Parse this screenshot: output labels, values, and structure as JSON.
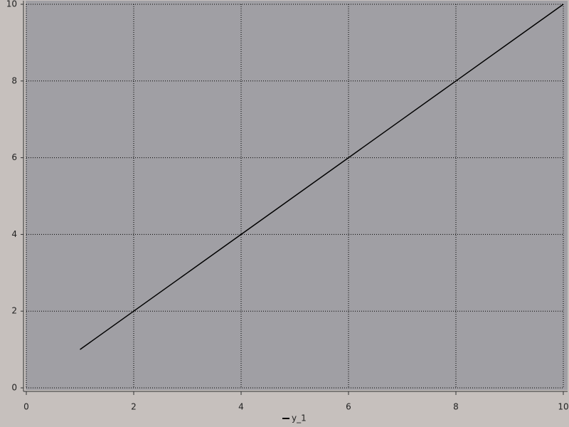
{
  "chart_data": {
    "type": "line",
    "x": [
      1,
      2,
      3,
      4,
      5,
      6,
      7,
      8,
      9,
      10
    ],
    "series": [
      {
        "name": "y_1",
        "color": "#000000",
        "values": [
          1,
          2,
          3,
          4,
          5,
          6,
          7,
          8,
          9,
          10
        ]
      }
    ],
    "xlim": [
      0,
      10
    ],
    "ylim": [
      0,
      10
    ],
    "xticks": [
      0,
      2,
      4,
      6,
      8,
      10
    ],
    "yticks": [
      0,
      2,
      4,
      6,
      8,
      10
    ],
    "grid": true,
    "legend": "bottom"
  }
}
